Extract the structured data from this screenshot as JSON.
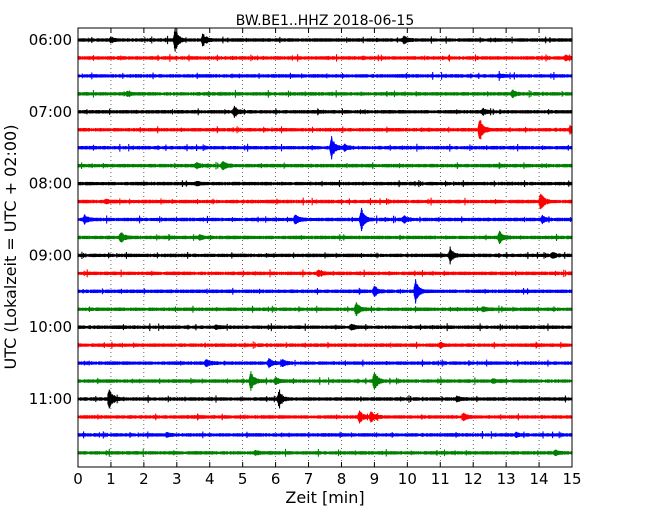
{
  "chart_data": {
    "type": "line",
    "title": "BW.BE1..HHZ 2018-06-15",
    "xlabel": "Zeit  [min]",
    "ylabel": "UTC (Lokalzeit = UTC + 02:00)",
    "xlim": [
      0,
      15
    ],
    "x_ticks": [
      "0",
      "1",
      "2",
      "3",
      "4",
      "5",
      "6",
      "7",
      "8",
      "9",
      "10",
      "11",
      "12",
      "13",
      "14",
      "15"
    ],
    "y_ticks": [
      "06:00",
      "07:00",
      "08:00",
      "09:00",
      "10:00",
      "11:00"
    ],
    "grid": true,
    "trace_interval_minutes": 15,
    "trace_colors": [
      "#000000",
      "#ff0000",
      "#0000ff",
      "#008000"
    ],
    "traces": [
      {
        "start": "06:00",
        "events": [
          {
            "t": 2.95,
            "amp": 1.0
          },
          {
            "t": 3.8,
            "amp": 0.5
          },
          {
            "t": 1.0,
            "amp": 0.2
          },
          {
            "t": 9.9,
            "amp": 0.3
          }
        ]
      },
      {
        "start": "06:15",
        "events": [
          {
            "t": 14.8,
            "amp": 0.2
          }
        ]
      },
      {
        "start": "06:30",
        "events": [
          {
            "t": 12.8,
            "amp": 0.15
          }
        ]
      },
      {
        "start": "06:45",
        "events": [
          {
            "t": 13.2,
            "amp": 0.3
          },
          {
            "t": 1.5,
            "amp": 0.15
          }
        ]
      },
      {
        "start": "07:00",
        "events": [
          {
            "t": 4.75,
            "amp": 0.45
          },
          {
            "t": 12.3,
            "amp": 0.25
          }
        ]
      },
      {
        "start": "07:15",
        "events": [
          {
            "t": 12.2,
            "amp": 1.0
          },
          {
            "t": 14.95,
            "amp": 0.35
          }
        ]
      },
      {
        "start": "07:30",
        "events": [
          {
            "t": 7.7,
            "amp": 1.0
          },
          {
            "t": 8.1,
            "amp": 0.3
          }
        ]
      },
      {
        "start": "07:45",
        "events": [
          {
            "t": 4.4,
            "amp": 0.4
          },
          {
            "t": 3.6,
            "amp": 0.25
          }
        ]
      },
      {
        "start": "08:00",
        "events": [
          {
            "t": 3.6,
            "amp": 0.15
          }
        ]
      },
      {
        "start": "08:15",
        "events": [
          {
            "t": 14.05,
            "amp": 0.85
          },
          {
            "t": 0.85,
            "amp": 0.15
          }
        ]
      },
      {
        "start": "08:30",
        "events": [
          {
            "t": 8.6,
            "amp": 1.0
          },
          {
            "t": 6.6,
            "amp": 0.45
          },
          {
            "t": 0.2,
            "amp": 0.4
          },
          {
            "t": 9.9,
            "amp": 0.3
          },
          {
            "t": 14.1,
            "amp": 0.3
          }
        ]
      },
      {
        "start": "08:45",
        "events": [
          {
            "t": 1.3,
            "amp": 0.5
          },
          {
            "t": 12.8,
            "amp": 0.55
          },
          {
            "t": 3.7,
            "amp": 0.2
          }
        ]
      },
      {
        "start": "09:00",
        "events": [
          {
            "t": 11.3,
            "amp": 0.6
          },
          {
            "t": 14.4,
            "amp": 0.25
          }
        ]
      },
      {
        "start": "09:15",
        "events": [
          {
            "t": 7.3,
            "amp": 0.3
          }
        ]
      },
      {
        "start": "09:30",
        "events": [
          {
            "t": 10.25,
            "amp": 0.95
          },
          {
            "t": 9.0,
            "amp": 0.45
          }
        ]
      },
      {
        "start": "09:45",
        "events": [
          {
            "t": 8.45,
            "amp": 0.6
          },
          {
            "t": 12.3,
            "amp": 0.15
          }
        ]
      },
      {
        "start": "10:00",
        "events": [
          {
            "t": 8.3,
            "amp": 0.25
          },
          {
            "t": 4.2,
            "amp": 0.15
          }
        ]
      },
      {
        "start": "10:15",
        "events": [
          {
            "t": 11.0,
            "amp": 0.15
          }
        ]
      },
      {
        "start": "10:30",
        "events": [
          {
            "t": 3.9,
            "amp": 0.35
          },
          {
            "t": 5.8,
            "amp": 0.35
          },
          {
            "t": 6.2,
            "amp": 0.3
          }
        ]
      },
      {
        "start": "10:45",
        "events": [
          {
            "t": 5.25,
            "amp": 0.8
          },
          {
            "t": 9.0,
            "amp": 0.85
          },
          {
            "t": 6.0,
            "amp": 0.3
          },
          {
            "t": 12.6,
            "amp": 0.15
          }
        ]
      },
      {
        "start": "11:00",
        "events": [
          {
            "t": 0.95,
            "amp": 0.85
          },
          {
            "t": 6.1,
            "amp": 0.7
          },
          {
            "t": 11.5,
            "amp": 0.15
          }
        ]
      },
      {
        "start": "11:15",
        "events": [
          {
            "t": 8.55,
            "amp": 0.55
          },
          {
            "t": 8.9,
            "amp": 0.45
          },
          {
            "t": 11.7,
            "amp": 0.3
          }
        ]
      },
      {
        "start": "11:30",
        "events": [
          {
            "t": 2.7,
            "amp": 0.15
          },
          {
            "t": 13.3,
            "amp": 0.15
          }
        ]
      },
      {
        "start": "11:45",
        "events": [
          {
            "t": 14.5,
            "amp": 0.2
          },
          {
            "t": 5.4,
            "amp": 0.15
          }
        ]
      }
    ]
  }
}
